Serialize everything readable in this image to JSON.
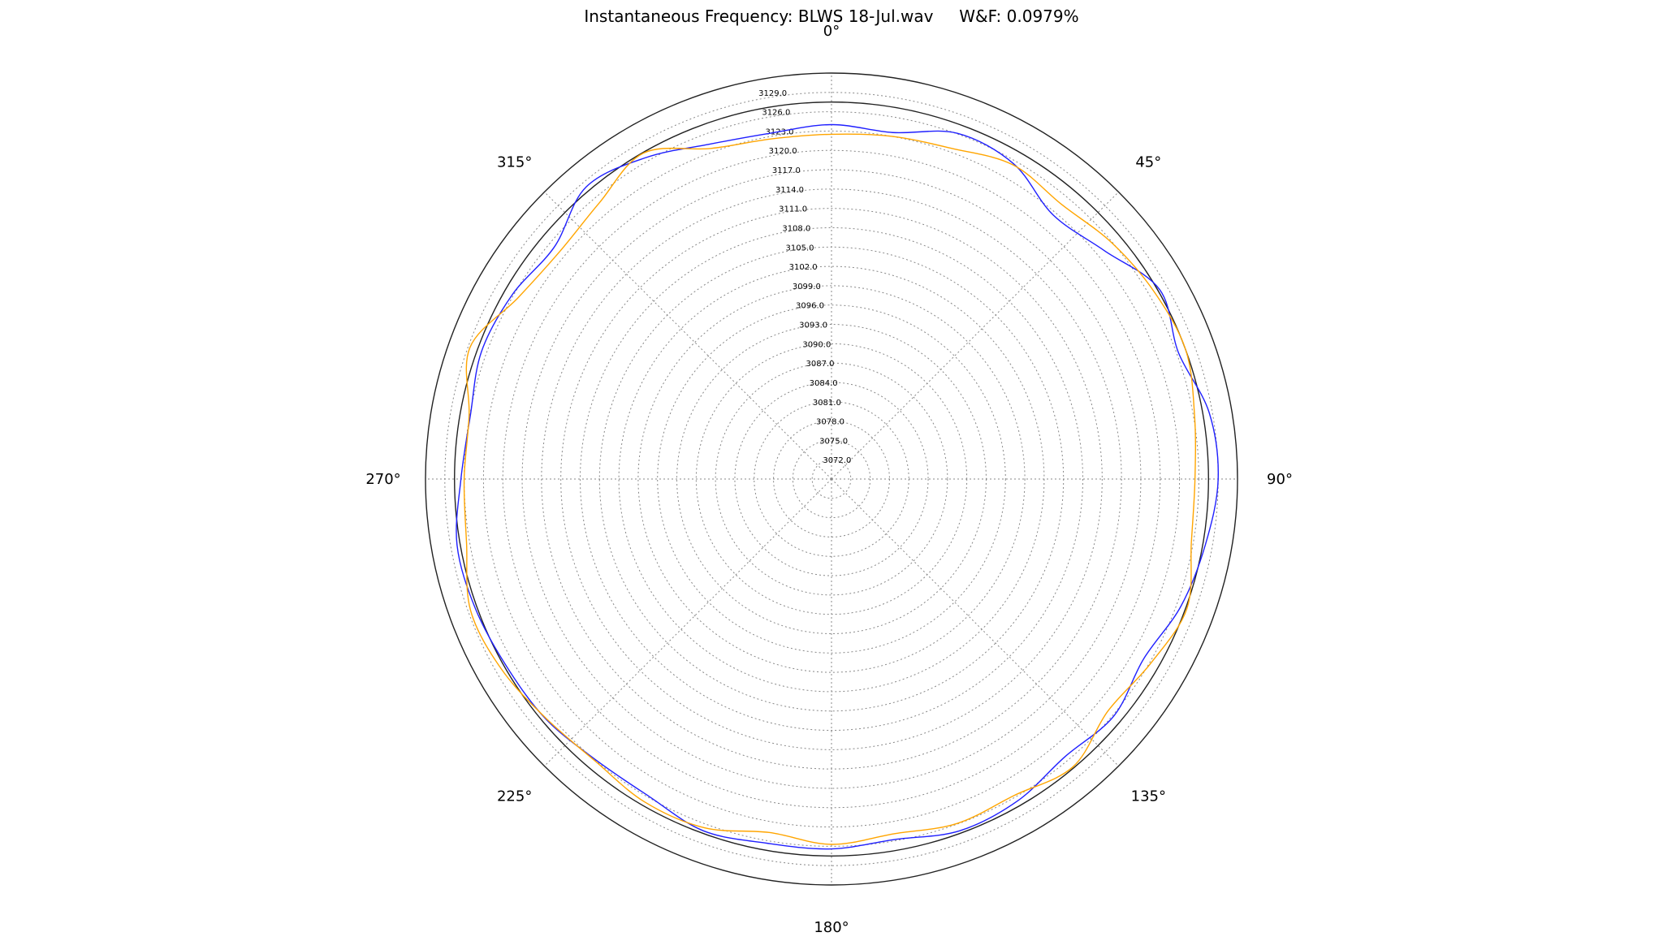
{
  "chart_data": {
    "type": "line",
    "projection": "polar",
    "title": "Instantaneous Frequency: BLWS 18-Jul.wav     W&F: 0.0979%",
    "angle_labels": [
      "0°",
      "45°",
      "90°",
      "135°",
      "180°",
      "225°",
      "270°",
      "315°"
    ],
    "angle_direction": "clockwise",
    "zero_location": "top",
    "r_min": 3069.0,
    "r_max": 3132.0,
    "radial_ticks": [
      3072.0,
      3075.0,
      3078.0,
      3081.0,
      3084.0,
      3087.0,
      3090.0,
      3093.0,
      3096.0,
      3099.0,
      3102.0,
      3105.0,
      3108.0,
      3111.0,
      3114.0,
      3117.0,
      3120.0,
      3123.0,
      3126.0,
      3129.0
    ],
    "radial_tick_labels": [
      "3072.0",
      "3075.0",
      "3078.0",
      "3081.0",
      "3084.0",
      "3087.0",
      "3090.0",
      "3093.0",
      "3096.0",
      "3099.0",
      "3102.0",
      "3105.0",
      "3108.0",
      "3111.0",
      "3114.0",
      "3117.0",
      "3120.0",
      "3123.0",
      "3126.0",
      "3129.0"
    ],
    "grid": true,
    "reference_circle_r": 3127.5,
    "series": [
      {
        "color": "#1f1fff",
        "theta_deg": [
          0,
          10,
          20,
          30,
          40,
          50,
          60,
          70,
          80,
          90,
          100,
          110,
          120,
          130,
          140,
          150,
          160,
          170,
          180,
          190,
          200,
          210,
          220,
          230,
          240,
          250,
          260,
          270,
          280,
          290,
          300,
          310,
          320,
          330,
          340,
          350,
          360
        ],
        "r": [
          3124.0,
          3123.6,
          3126.1,
          3125.5,
          3122.5,
          3124.2,
          3127.8,
          3126.3,
          3128.5,
          3129.0,
          3127.9,
          3126.7,
          3124.9,
          3126.2,
          3125.3,
          3126.7,
          3127.1,
          3125.8,
          3126.4,
          3126.4,
          3127.1,
          3125.8,
          3125.9,
          3126.9,
          3127.2,
          3127.8,
          3128.0,
          3126.5,
          3125.9,
          3126.8,
          3126.2,
          3125.1,
          3128.2,
          3126.6,
          3124.3,
          3123.5,
          3124.0
        ]
      },
      {
        "color": "#ffa500",
        "theta_deg": [
          0,
          10,
          20,
          30,
          40,
          50,
          60,
          70,
          80,
          90,
          100,
          110,
          120,
          130,
          140,
          150,
          160,
          170,
          180,
          190,
          200,
          210,
          220,
          230,
          240,
          250,
          260,
          270,
          280,
          290,
          300,
          310,
          320,
          330,
          340,
          350,
          360
        ],
        "r": [
          3122.5,
          3123.0,
          3123.6,
          3125.3,
          3124.6,
          3125.9,
          3126.9,
          3127.5,
          3126.2,
          3125.4,
          3125.7,
          3127.7,
          3126.2,
          3125.0,
          3127.3,
          3125.7,
          3125.9,
          3124.9,
          3125.7,
          3124.7,
          3126.6,
          3126.9,
          3126.1,
          3126.8,
          3128.1,
          3128.6,
          3126.5,
          3126.0,
          3126.1,
          3128.7,
          3125.2,
          3124.0,
          3125.0,
          3127.4,
          3123.6,
          3122.6,
          3122.5
        ]
      }
    ]
  }
}
